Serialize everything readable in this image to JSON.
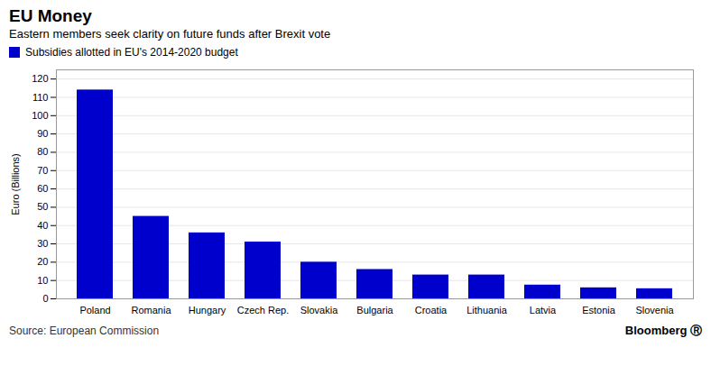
{
  "chart_data": {
    "type": "bar",
    "title": "EU Money",
    "subtitle": "Eastern members seek clarity on future funds after Brexit vote",
    "ylabel": "Euro (Billions)",
    "categories": [
      "Poland",
      "Romania",
      "Hungary",
      "Czech Rep.",
      "Slovakia",
      "Bulgaria",
      "Croatia",
      "Lithuania",
      "Latvia",
      "Estonia",
      "Slovenia"
    ],
    "series": [
      {
        "name": "Subsidies allotted in EU's 2014-2020 budget",
        "color": "#0000cc",
        "values": [
          114,
          45,
          36,
          31,
          20,
          16,
          13,
          13,
          7.5,
          6,
          5.5
        ]
      }
    ],
    "ylim": [
      0,
      125
    ],
    "yticks": [
      0,
      10,
      20,
      30,
      40,
      50,
      60,
      70,
      80,
      90,
      100,
      110,
      120
    ],
    "grid": true,
    "legend": "top",
    "annotations": [
      "Source: European Commission",
      "Bloomberg Ⓡ"
    ]
  }
}
